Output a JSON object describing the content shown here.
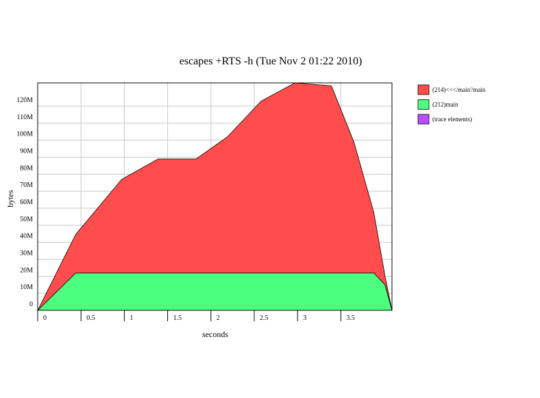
{
  "chart_data": {
    "type": "stacked-area",
    "title": "escapes +RTS -h (Tue Nov 2 01:22 2010)",
    "xlabel": "seconds",
    "ylabel": "bytes",
    "x": [
      0,
      0.44,
      0.97,
      1.39,
      1.83,
      2.19,
      2.58,
      2.97,
      3.39,
      3.65,
      3.88,
      4.01,
      4.09
    ],
    "series": [
      {
        "name": "(214)<<</main'/main",
        "color": "#ff4d4d",
        "values": [
          0,
          22.7,
          55,
          67,
          67,
          80,
          101,
          111.7,
          110,
          77,
          35.6,
          5,
          0
        ]
      },
      {
        "name": "(212)main",
        "color": "#4dff7f",
        "values": [
          0,
          22,
          22,
          22,
          22,
          22,
          22,
          22,
          22,
          22,
          22,
          15,
          0
        ]
      },
      {
        "name": "(trace elements)",
        "color": "#b94dff",
        "values": [
          0,
          0,
          0,
          0,
          0,
          0,
          0,
          0,
          0,
          0,
          0,
          0,
          0
        ]
      }
    ],
    "xlim": [
      0,
      4.09
    ],
    "ylim": [
      0,
      133.7
    ],
    "xticks": [
      0,
      0.5,
      1,
      1.5,
      2,
      2.5,
      3,
      3.5
    ],
    "yticks": [
      0,
      {
        "value": 10,
        "label": "10M"
      },
      {
        "value": 20,
        "label": "20M"
      },
      {
        "value": 30,
        "label": "30M"
      },
      {
        "value": 40,
        "label": "40M"
      },
      {
        "value": 50,
        "label": "50M"
      },
      {
        "value": 60,
        "label": "60M"
      },
      {
        "value": 70,
        "label": "70M"
      },
      {
        "value": 80,
        "label": "80M"
      },
      {
        "value": 90,
        "label": "90M"
      },
      {
        "value": 100,
        "label": "100M"
      },
      {
        "value": 110,
        "label": "110M"
      },
      {
        "value": 120,
        "label": "120M"
      }
    ],
    "grid": true,
    "legend": "right"
  }
}
